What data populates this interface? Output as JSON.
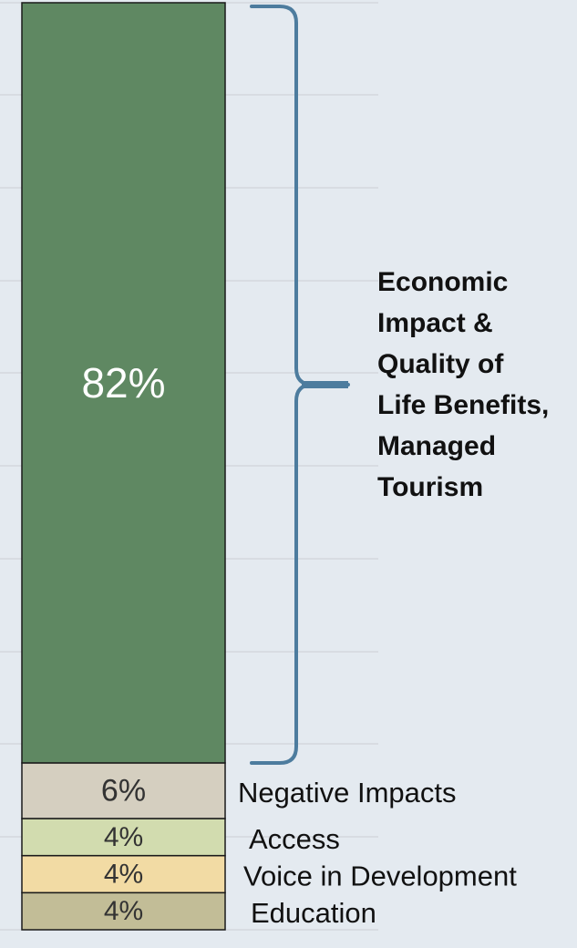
{
  "chart_data": {
    "type": "bar",
    "stacked": true,
    "categories": [
      ""
    ],
    "ylim": [
      0,
      100
    ],
    "grid": true,
    "series": [
      {
        "name": "Education",
        "value": 4,
        "label": "4%",
        "color": "#c2bd97",
        "label_color": "#333333"
      },
      {
        "name": "Voice in Development",
        "value": 4,
        "label": "4%",
        "color": "#f2dba4",
        "label_color": "#333333"
      },
      {
        "name": "Access",
        "value": 4,
        "label": "4%",
        "color": "#d2dcaf",
        "label_color": "#333333"
      },
      {
        "name": "Negative Impacts",
        "value": 6,
        "label": "6%",
        "color": "#d5cfc0",
        "label_color": "#333333"
      },
      {
        "name": "",
        "value": 82,
        "label": "82%",
        "color": "#5f8862",
        "label_color": "#ffffff"
      }
    ],
    "annotation": {
      "text_lines": [
        "Economic",
        "Impact &",
        "Quality of",
        "Life Benefits,",
        "Managed",
        "Tourism"
      ],
      "brace_color": "#4d7c9e"
    }
  }
}
